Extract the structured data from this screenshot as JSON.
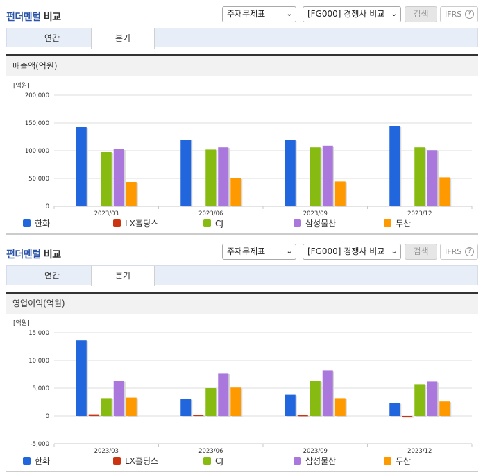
{
  "panels": [
    {
      "title_accent": "펀더멘털",
      "title_rest": " 비교",
      "select_statement": "주재무제표",
      "select_compare": "[FG000] 경쟁사 비교",
      "search_label": "검색",
      "ifrs_label": "IFRS",
      "help_icon": "?",
      "tabs": [
        {
          "label": "연간",
          "active": false
        },
        {
          "label": "분기",
          "active": true
        }
      ],
      "section_title": "매출액(억원)"
    },
    {
      "title_accent": "펀더멘털",
      "title_rest": " 비교",
      "select_statement": "주재무제표",
      "select_compare": "[FG000] 경쟁사 비교",
      "search_label": "검색",
      "ifrs_label": "IFRS",
      "help_icon": "?",
      "tabs": [
        {
          "label": "연간",
          "active": false
        },
        {
          "label": "분기",
          "active": true
        }
      ],
      "section_title": "영업이익(억원)"
    }
  ],
  "legend": [
    {
      "name": "한화",
      "color": "#2266dd"
    },
    {
      "name": "LX홀딩스",
      "color": "#cc3311"
    },
    {
      "name": "CJ",
      "color": "#88bb11"
    },
    {
      "name": "삼성물산",
      "color": "#aa77dd"
    },
    {
      "name": "두산",
      "color": "#ff9900"
    }
  ],
  "chart_data": [
    {
      "type": "bar",
      "title": "매출액(억원)",
      "unit_label": "[억원]",
      "xlabel": "",
      "ylabel": "억원",
      "ylim": [
        0,
        200000
      ],
      "yticks": [
        0,
        50000,
        100000,
        150000,
        200000
      ],
      "ytick_labels": [
        "0",
        "50,000",
        "100,000",
        "150,000",
        "200,000"
      ],
      "categories": [
        "2023/03",
        "2023/06",
        "2023/09",
        "2023/12"
      ],
      "grid": true,
      "legend_position": "bottom",
      "series": [
        {
          "name": "한화",
          "values": [
            142500,
            120000,
            119000,
            144000
          ]
        },
        {
          "name": "LX홀딩스",
          "values": [
            null,
            null,
            null,
            null
          ]
        },
        {
          "name": "CJ",
          "values": [
            97500,
            102000,
            106000,
            106000
          ]
        },
        {
          "name": "삼성물산",
          "values": [
            102500,
            106000,
            109000,
            101000
          ]
        },
        {
          "name": "두산",
          "values": [
            43750,
            50000,
            44500,
            52000
          ]
        }
      ]
    },
    {
      "type": "bar",
      "title": "영업이익(억원)",
      "unit_label": "[억원]",
      "xlabel": "",
      "ylabel": "억원",
      "ylim": [
        -5000,
        15000
      ],
      "yticks": [
        -5000,
        0,
        5000,
        10000,
        15000
      ],
      "ytick_labels": [
        "-5,000",
        "0",
        "5,000",
        "10,000",
        "15,000"
      ],
      "categories": [
        "2023/03",
        "2023/06",
        "2023/09",
        "2023/12"
      ],
      "grid": true,
      "legend_position": "bottom",
      "series": [
        {
          "name": "한화",
          "values": [
            13600,
            3000,
            3800,
            2300
          ]
        },
        {
          "name": "LX홀딩스",
          "values": [
            300,
            200,
            150,
            -150
          ]
        },
        {
          "name": "CJ",
          "values": [
            3200,
            5000,
            6300,
            5700
          ]
        },
        {
          "name": "삼성물산",
          "values": [
            6300,
            7700,
            8200,
            6200
          ]
        },
        {
          "name": "두산",
          "values": [
            3300,
            5100,
            3200,
            2600
          ]
        }
      ]
    }
  ]
}
